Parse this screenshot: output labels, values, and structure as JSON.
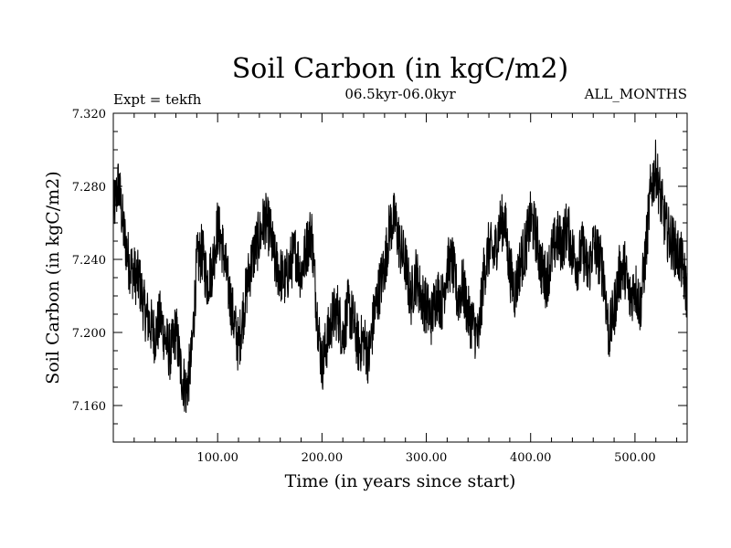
{
  "chart_data": {
    "type": "line",
    "title": "Soil Carbon (in kgC/m2)",
    "subtitle": "06.5kyr-06.0kyr",
    "left_annotation": "Expt = tekfh",
    "right_annotation": "ALL_MONTHS",
    "xlabel": "Time (in years since start)",
    "ylabel": "Soil Carbon (in kgC/m2)",
    "xlim": [
      0,
      550
    ],
    "ylim": [
      7.14,
      7.32
    ],
    "x_ticks": [
      {
        "value": 100,
        "label": "100.00"
      },
      {
        "value": 200,
        "label": "200.00"
      },
      {
        "value": 300,
        "label": "300.00"
      },
      {
        "value": 400,
        "label": "400.00"
      },
      {
        "value": 500,
        "label": "500.00"
      }
    ],
    "y_ticks": [
      {
        "value": 7.16,
        "label": "7.160"
      },
      {
        "value": 7.2,
        "label": "7.200"
      },
      {
        "value": 7.24,
        "label": "7.240"
      },
      {
        "value": 7.28,
        "label": "7.280"
      },
      {
        "value": 7.32,
        "label": "7.320"
      }
    ],
    "series": [
      {
        "name": "Soil Carbon",
        "x": [
          0,
          5,
          10,
          15,
          20,
          25,
          30,
          35,
          40,
          45,
          50,
          55,
          60,
          65,
          70,
          75,
          80,
          85,
          90,
          95,
          100,
          105,
          110,
          115,
          120,
          125,
          130,
          135,
          140,
          145,
          150,
          155,
          160,
          165,
          170,
          175,
          180,
          185,
          190,
          195,
          200,
          205,
          210,
          215,
          220,
          225,
          230,
          235,
          240,
          245,
          250,
          255,
          260,
          265,
          270,
          275,
          280,
          285,
          290,
          295,
          300,
          305,
          310,
          315,
          320,
          325,
          330,
          335,
          340,
          345,
          350,
          355,
          360,
          365,
          370,
          375,
          380,
          385,
          390,
          395,
          400,
          405,
          410,
          415,
          420,
          425,
          430,
          435,
          440,
          445,
          450,
          455,
          460,
          465,
          470,
          475,
          480,
          485,
          490,
          495,
          500,
          505,
          510,
          515,
          520,
          525,
          530,
          535,
          540,
          545,
          550
        ],
        "y": [
          7.265,
          7.282,
          7.255,
          7.238,
          7.232,
          7.228,
          7.212,
          7.205,
          7.198,
          7.208,
          7.196,
          7.188,
          7.202,
          7.178,
          7.168,
          7.186,
          7.238,
          7.244,
          7.228,
          7.236,
          7.258,
          7.246,
          7.226,
          7.208,
          7.192,
          7.213,
          7.232,
          7.244,
          7.252,
          7.262,
          7.256,
          7.238,
          7.232,
          7.228,
          7.238,
          7.244,
          7.232,
          7.246,
          7.256,
          7.212,
          7.182,
          7.196,
          7.208,
          7.212,
          7.198,
          7.214,
          7.206,
          7.192,
          7.196,
          7.186,
          7.21,
          7.224,
          7.236,
          7.258,
          7.262,
          7.246,
          7.238,
          7.218,
          7.232,
          7.22,
          7.214,
          7.208,
          7.222,
          7.216,
          7.236,
          7.238,
          7.218,
          7.226,
          7.21,
          7.204,
          7.196,
          7.232,
          7.246,
          7.242,
          7.258,
          7.262,
          7.234,
          7.222,
          7.238,
          7.246,
          7.262,
          7.254,
          7.236,
          7.228,
          7.242,
          7.252,
          7.248,
          7.258,
          7.244,
          7.238,
          7.246,
          7.232,
          7.248,
          7.242,
          7.232,
          7.198,
          7.212,
          7.232,
          7.236,
          7.218,
          7.226,
          7.214,
          7.242,
          7.278,
          7.29,
          7.272,
          7.256,
          7.25,
          7.244,
          7.238,
          7.22
        ]
      }
    ],
    "noise_amplitude": 0.016,
    "grid": false,
    "line_color": "#000000"
  }
}
